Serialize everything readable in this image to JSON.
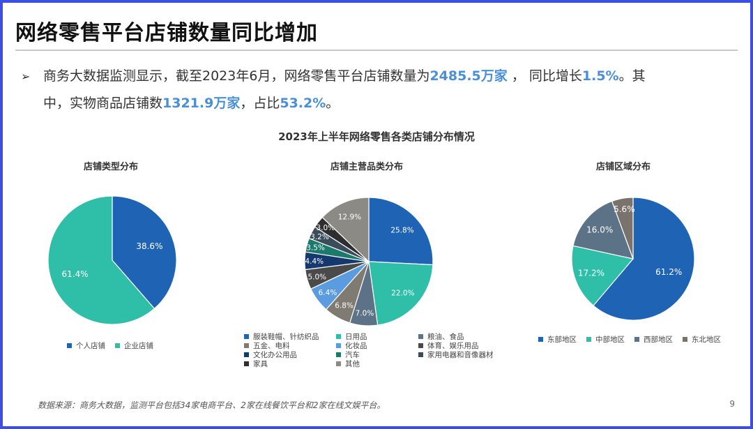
{
  "header": {
    "title": "网络零售平台店铺数量同比增加"
  },
  "summary": {
    "bullet": "➢",
    "t1": "商务大数据监测显示，截至2023年6月，网络零售平台店铺数量为",
    "h1": "2485.5万家",
    "t2": " ， 同比增长",
    "h2": "1.5%",
    "t3": "。其",
    "t4": "中，实物商品店铺数",
    "h3": "1321.9万家",
    "t5": "，占比",
    "h4": "53.2%",
    "t6": "。"
  },
  "chart_data": {
    "title": "2023年上半年网络零售各类店铺分布情况",
    "charts": [
      {
        "type": "pie",
        "title": "店铺类型分布",
        "categories": [
          "个人店铺",
          "企业店铺"
        ],
        "values": [
          38.6,
          61.4
        ],
        "labels": [
          "38.6%",
          "61.4%"
        ],
        "colors": [
          "#1f63b5",
          "#2fbfa9"
        ],
        "label_colors": [
          "#ffffff",
          "#ffffff"
        ],
        "legend_position": "bottom"
      },
      {
        "type": "pie",
        "title": "店铺主营品类分布",
        "categories": [
          "服装鞋帽、针纺织品",
          "日用品",
          "粮油、食品",
          "五金、电料",
          "化妆品",
          "体育、娱乐用品",
          "文化办公用品",
          "汽车",
          "家用电器和音像器材",
          "家具",
          "其他"
        ],
        "values": [
          25.8,
          22.0,
          7.0,
          6.8,
          6.4,
          5.0,
          4.4,
          3.5,
          3.2,
          3.0,
          12.9
        ],
        "labels": [
          "25.8%",
          "22.0%",
          "7.0%",
          "6.8%",
          "6.4%",
          "5.0%",
          "4.4%",
          "3.5%",
          "3.2%",
          "3.0%",
          "12.9%"
        ],
        "colors": [
          "#1f63b5",
          "#2fbfa9",
          "#5c7286",
          "#7f7a72",
          "#5b9bdf",
          "#4a4a4a",
          "#15386e",
          "#1c7a6c",
          "#3a4b5a",
          "#2e2e2e",
          "#8c8a84"
        ],
        "label_colors": [
          "#ffffff",
          "#ffffff",
          "#ffffff",
          "#ffffff",
          "#ffffff",
          "#ffffff",
          "#ffffff",
          "#ffffff",
          "#ffffff",
          "#ffffff",
          "#ffffff"
        ],
        "legend_position": "bottom"
      },
      {
        "type": "pie",
        "title": "店铺区域分布",
        "categories": [
          "东部地区",
          "中部地区",
          "西部地区",
          "东北地区"
        ],
        "values": [
          61.2,
          17.2,
          16.0,
          5.6
        ],
        "labels": [
          "61.2%",
          "17.2%",
          "16.0%",
          "5.6%"
        ],
        "colors": [
          "#1f63b5",
          "#2fbfa9",
          "#5c7286",
          "#7a726c"
        ],
        "label_colors": [
          "#ffffff",
          "#ffffff",
          "#ffffff",
          "#ffffff"
        ],
        "legend_position": "bottom"
      }
    ]
  },
  "footer": {
    "source": "数据来源：商务大数据，监测平台包括34家电商平台、2家在线餐饮平台和2家在线文娱平台。",
    "page": "9"
  }
}
